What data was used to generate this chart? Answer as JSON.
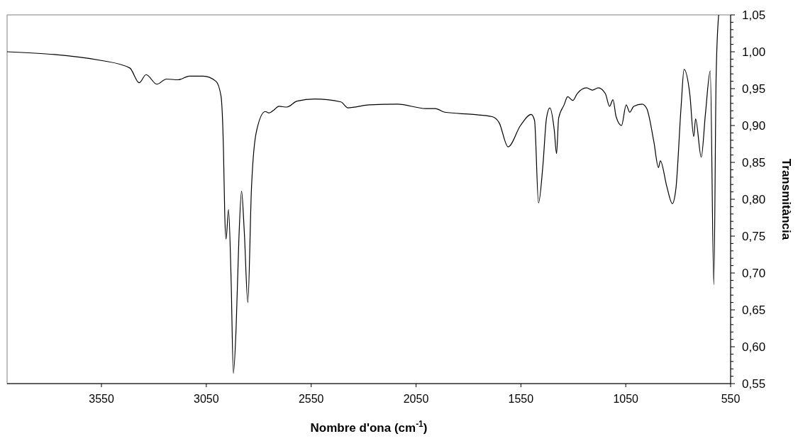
{
  "chart_data": {
    "type": "line",
    "xlabel": "Nombre d'ona (cm$^{-1}$)",
    "ylabel": "Transmitància",
    "grid": false,
    "marker": "none",
    "line_style": "solid",
    "xlim": [
      4000,
      550
    ],
    "xticks": [
      3550,
      3050,
      2550,
      2050,
      1550,
      1050,
      550
    ],
    "ylim": [
      0.55,
      1.05
    ],
    "yticks": [
      {
        "value": 0.55,
        "label": "0,55"
      },
      {
        "value": 0.56,
        "label": null
      },
      {
        "value": 0.57,
        "label": null
      },
      {
        "value": 0.58,
        "label": null
      },
      {
        "value": 0.59,
        "label": null
      },
      {
        "value": 0.6,
        "label": "0,60"
      },
      {
        "value": 0.61,
        "label": null
      },
      {
        "value": 0.62,
        "label": null
      },
      {
        "value": 0.63,
        "label": null
      },
      {
        "value": 0.64,
        "label": null
      },
      {
        "value": 0.65,
        "label": "0,65"
      },
      {
        "value": 0.66,
        "label": null
      },
      {
        "value": 0.67,
        "label": null
      },
      {
        "value": 0.68,
        "label": null
      },
      {
        "value": 0.69,
        "label": null
      },
      {
        "value": 0.7,
        "label": "0,70"
      },
      {
        "value": 0.71,
        "label": null
      },
      {
        "value": 0.72,
        "label": null
      },
      {
        "value": 0.73,
        "label": null
      },
      {
        "value": 0.74,
        "label": null
      },
      {
        "value": 0.75,
        "label": "0,75"
      },
      {
        "value": 0.76,
        "label": null
      },
      {
        "value": 0.77,
        "label": null
      },
      {
        "value": 0.78,
        "label": null
      },
      {
        "value": 0.79,
        "label": null
      },
      {
        "value": 0.8,
        "label": "0,80"
      },
      {
        "value": 0.81,
        "label": null
      },
      {
        "value": 0.82,
        "label": null
      },
      {
        "value": 0.83,
        "label": null
      },
      {
        "value": 0.84,
        "label": null
      },
      {
        "value": 0.85,
        "label": "0,85"
      },
      {
        "value": 0.86,
        "label": null
      },
      {
        "value": 0.87,
        "label": null
      },
      {
        "value": 0.88,
        "label": null
      },
      {
        "value": 0.89,
        "label": null
      },
      {
        "value": 0.9,
        "label": "0,90"
      },
      {
        "value": 0.91,
        "label": null
      },
      {
        "value": 0.92,
        "label": null
      },
      {
        "value": 0.93,
        "label": null
      },
      {
        "value": 0.94,
        "label": null
      },
      {
        "value": 0.95,
        "label": "0,95"
      },
      {
        "value": 0.96,
        "label": null
      },
      {
        "value": 0.97,
        "label": null
      },
      {
        "value": 0.98,
        "label": null
      },
      {
        "value": 0.99,
        "label": null
      },
      {
        "value": 1.0,
        "label": "1,00"
      },
      {
        "value": 1.01,
        "label": null
      },
      {
        "value": 1.02,
        "label": null
      },
      {
        "value": 1.03,
        "label": null
      },
      {
        "value": 1.04,
        "label": null
      },
      {
        "value": 1.05,
        "label": "1,05"
      }
    ],
    "series": [
      {
        "color": "#000000",
        "x": [
          4000,
          3547,
          3415,
          3370,
          3337,
          3286,
          3240,
          3185,
          3131,
          3065,
          3004,
          2980,
          2968,
          2962,
          2956,
          2944,
          2932,
          2921,
          2908,
          2895,
          2882,
          2869,
          2852,
          2835,
          2811,
          2769,
          2752,
          2728,
          2704,
          2666,
          2618,
          2534,
          2408,
          2375,
          2273,
          2138,
          2003,
          1958,
          1913,
          1777,
          1687,
          1654,
          1611,
          1552,
          1501,
          1485,
          1466,
          1445,
          1428,
          1412,
          1391,
          1380,
          1370,
          1344,
          1327,
          1302,
          1282,
          1237,
          1209,
          1181,
          1147,
          1127,
          1111,
          1096,
          1070,
          1048,
          1031,
          1012,
          972,
          950,
          916,
          894,
          885,
          854,
          828,
          811,
          786,
          772,
          744,
          726,
          717,
          690,
          670,
          647,
          630,
          619,
          607
        ],
        "values": [
          1.0,
          0.988,
          0.978,
          0.958,
          0.969,
          0.956,
          0.963,
          0.962,
          0.967,
          0.967,
          0.96,
          0.94,
          0.864,
          0.778,
          0.746,
          0.786,
          0.693,
          0.564,
          0.625,
          0.744,
          0.811,
          0.756,
          0.66,
          0.813,
          0.892,
          0.919,
          0.917,
          0.921,
          0.926,
          0.925,
          0.933,
          0.936,
          0.932,
          0.924,
          0.928,
          0.929,
          0.923,
          0.923,
          0.918,
          0.915,
          0.912,
          0.904,
          0.871,
          0.9,
          0.915,
          0.907,
          0.795,
          0.846,
          0.91,
          0.924,
          0.894,
          0.862,
          0.91,
          0.928,
          0.939,
          0.934,
          0.943,
          0.951,
          0.948,
          0.951,
          0.943,
          0.926,
          0.935,
          0.912,
          0.9,
          0.928,
          0.918,
          0.926,
          0.929,
          0.923,
          0.878,
          0.843,
          0.852,
          0.817,
          0.794,
          0.814,
          0.926,
          0.976,
          0.941,
          0.885,
          0.909,
          0.857,
          0.916,
          0.974,
          0.684,
          0.967,
          1.05
        ]
      }
    ]
  }
}
